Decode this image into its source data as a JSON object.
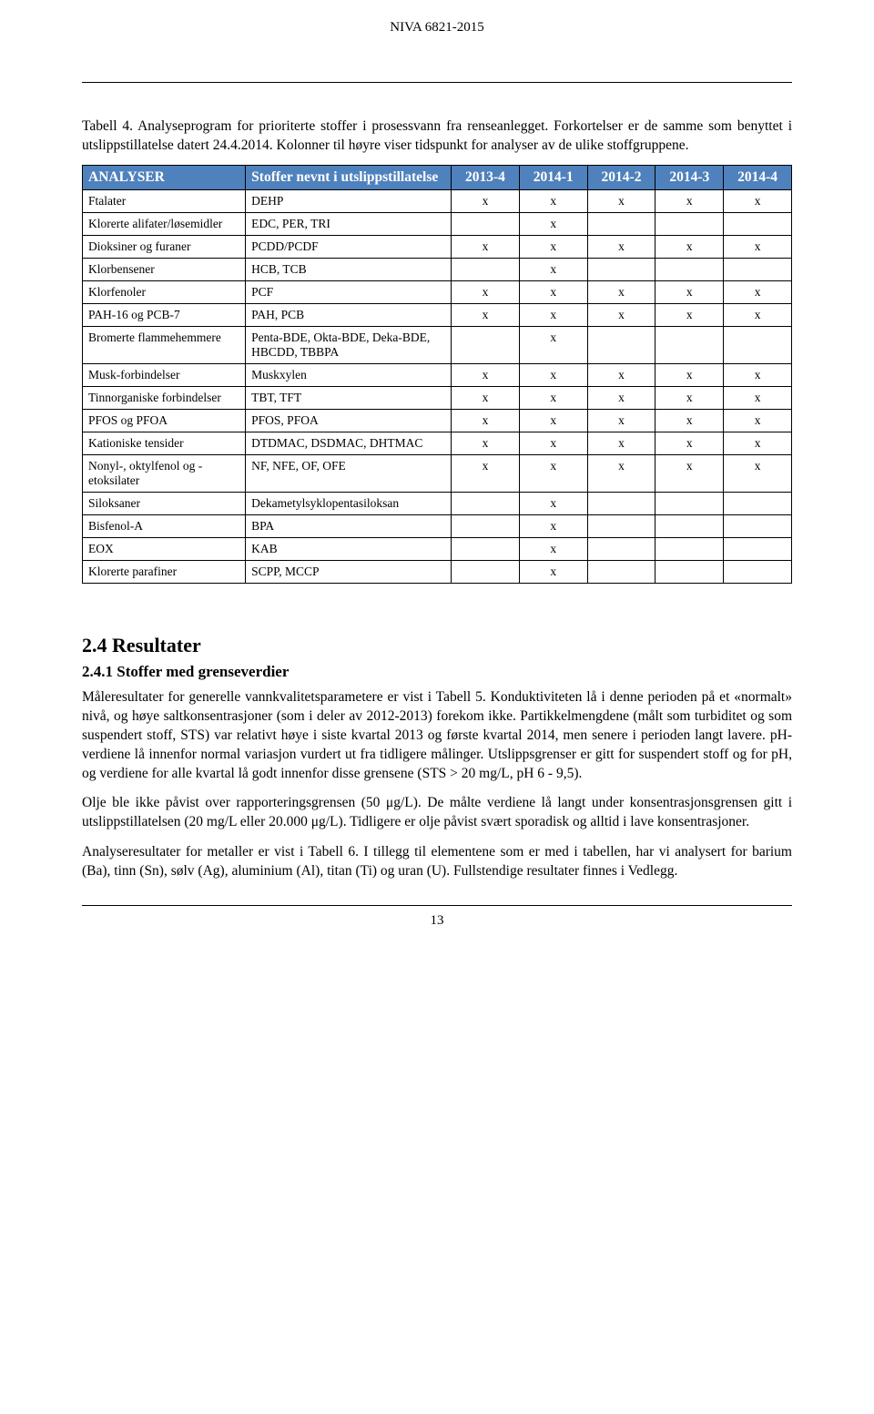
{
  "docHeader": "NIVA 6821-2015",
  "tableCaption": "Tabell 4. Analyseprogram for prioriterte stoffer i prosessvann fra renseanlegget. Forkortelser er de samme som benyttet i utslippstillatelse datert 24.4.2014. Kolonner til høyre viser tidspunkt for analyser av de ulike stoffgruppene.",
  "tableHeader": {
    "analyser": "ANALYSER",
    "stoffer": "Stoffer nevnt i utslippstillatelse",
    "periods": [
      "2013-4",
      "2014-1",
      "2014-2",
      "2014-3",
      "2014-4"
    ]
  },
  "rows": [
    {
      "a": "Ftalater",
      "s": "DEHP",
      "m": [
        "x",
        "x",
        "x",
        "x",
        "x"
      ]
    },
    {
      "a": "Klorerte alifater/løsemidler",
      "s": "EDC, PER, TRI",
      "m": [
        "",
        "x",
        "",
        "",
        ""
      ]
    },
    {
      "a": "Dioksiner og furaner",
      "s": "PCDD/PCDF",
      "m": [
        "x",
        "x",
        "x",
        "x",
        "x"
      ]
    },
    {
      "a": "Klorbensener",
      "s": "HCB, TCB",
      "m": [
        "",
        "x",
        "",
        "",
        ""
      ]
    },
    {
      "a": "Klorfenoler",
      "s": "PCF",
      "m": [
        "x",
        "x",
        "x",
        "x",
        "x"
      ]
    },
    {
      "a": "PAH-16 og PCB-7",
      "s": "PAH, PCB",
      "m": [
        "x",
        "x",
        "x",
        "x",
        "x"
      ]
    },
    {
      "a": "Bromerte flammehemmere",
      "s": "Penta-BDE, Okta-BDE, Deka-BDE, HBCDD, TBBPA",
      "m": [
        "",
        "x",
        "",
        "",
        ""
      ]
    },
    {
      "a": "Musk-forbindelser",
      "s": "Muskxylen",
      "m": [
        "x",
        "x",
        "x",
        "x",
        "x"
      ]
    },
    {
      "a": "Tinnorganiske forbindelser",
      "s": "TBT, TFT",
      "m": [
        "x",
        "x",
        "x",
        "x",
        "x"
      ]
    },
    {
      "a": "PFOS og PFOA",
      "s": "PFOS, PFOA",
      "m": [
        "x",
        "x",
        "x",
        "x",
        "x"
      ]
    },
    {
      "a": "Kationiske tensider",
      "s": "DTDMAC, DSDMAC, DHTMAC",
      "m": [
        "x",
        "x",
        "x",
        "x",
        "x"
      ]
    },
    {
      "a": "Nonyl-, oktylfenol og -etoksilater",
      "s": "NF, NFE, OF, OFE",
      "m": [
        "x",
        "x",
        "x",
        "x",
        "x"
      ]
    },
    {
      "a": "Siloksaner",
      "s": "Dekametylsyklopentasiloksan",
      "m": [
        "",
        "x",
        "",
        "",
        ""
      ]
    },
    {
      "a": "Bisfenol-A",
      "s": "BPA",
      "m": [
        "",
        "x",
        "",
        "",
        ""
      ]
    },
    {
      "a": "EOX",
      "s": "KAB",
      "m": [
        "",
        "x",
        "",
        "",
        ""
      ]
    },
    {
      "a": "Klorerte parafiner",
      "s": "SCPP, MCCP",
      "m": [
        "",
        "x",
        "",
        "",
        ""
      ]
    }
  ],
  "sectionTitle": "2.4 Resultater",
  "subTitle": "2.4.1 Stoffer med grenseverdier",
  "para1": "Måleresultater for generelle vannkvalitetsparametere er vist i Tabell 5. Konduktiviteten lå i denne perioden på et «normalt» nivå, og høye saltkonsentrasjoner (som i deler av 2012-2013) forekom ikke. Partikkelmengdene (målt som turbiditet og som suspendert stoff, STS) var relativt høye i siste kvartal 2013 og første kvartal 2014, men senere i perioden langt lavere. pH-verdiene lå innenfor normal variasjon vurdert ut fra tidligere målinger. Utslippsgrenser er gitt for suspendert stoff og for pH, og verdiene for alle kvartal lå godt innenfor disse grensene (STS > 20 mg/L, pH 6 - 9,5).",
  "para2": "Olje ble ikke påvist over rapporteringsgrensen (50 μg/L). De målte verdiene lå langt under konsentrasjonsgrensen gitt i utslippstillatelsen (20 mg/L eller 20.000 μg/L). Tidligere er olje påvist svært sporadisk og alltid i lave konsentrasjoner.",
  "para3": "Analyseresultater for metaller er vist i Tabell 6. I tillegg til elementene som er med i tabellen, har vi analysert for barium (Ba), tinn (Sn), sølv (Ag), aluminium (Al), titan (Ti) og uran (U). Fullstendige resultater finnes i Vedlegg.",
  "pageNumber": "13",
  "colors": {
    "headerBg": "#4f81bd",
    "headerText": "#ffffff"
  }
}
